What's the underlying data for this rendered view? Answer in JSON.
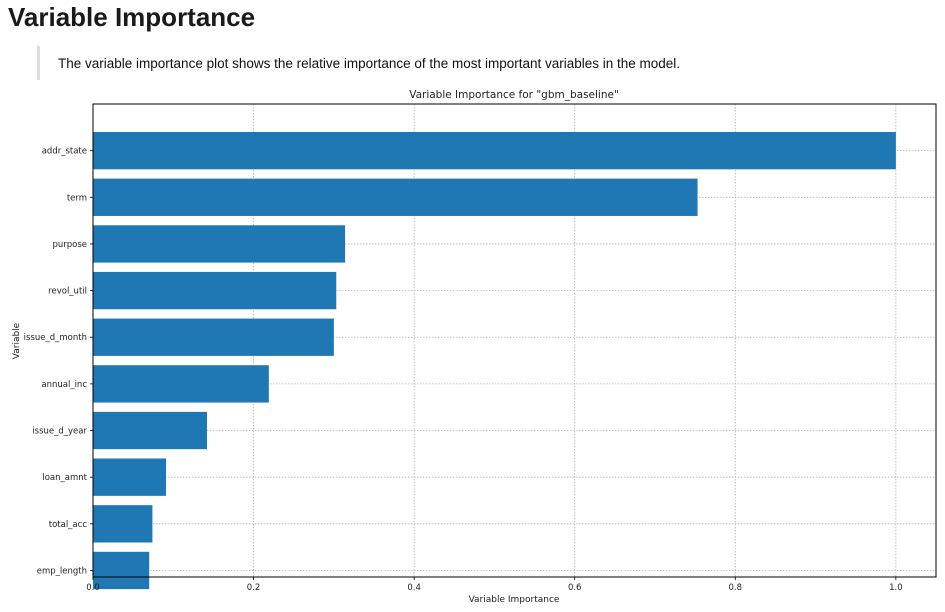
{
  "page": {
    "title": "Variable Importance",
    "description": "The variable importance plot shows the relative importance of the most important variables in the model."
  },
  "colors": {
    "bar": "#1f77b4",
    "grid": "#b0b0b0",
    "axis": "#000000"
  },
  "chart_data": {
    "type": "bar",
    "orientation": "horizontal",
    "title": "Variable Importance for \"gbm_baseline\"",
    "xlabel": "Variable Importance",
    "ylabel": "Variable",
    "categories": [
      "addr_state",
      "term",
      "purpose",
      "revol_util",
      "issue_d_month",
      "annual_inc",
      "issue_d_year",
      "loan_amnt",
      "total_acc",
      "emp_length"
    ],
    "values": [
      1.0,
      0.753,
      0.314,
      0.303,
      0.3,
      0.219,
      0.142,
      0.091,
      0.074,
      0.07
    ],
    "xlim": [
      0,
      1.05
    ],
    "xticks": [
      0.0,
      0.2,
      0.4,
      0.6,
      0.8,
      1.0
    ],
    "xtick_labels": [
      "0.0",
      "0.2",
      "0.4",
      "0.6",
      "0.8",
      "1.0"
    ],
    "grid": true
  }
}
